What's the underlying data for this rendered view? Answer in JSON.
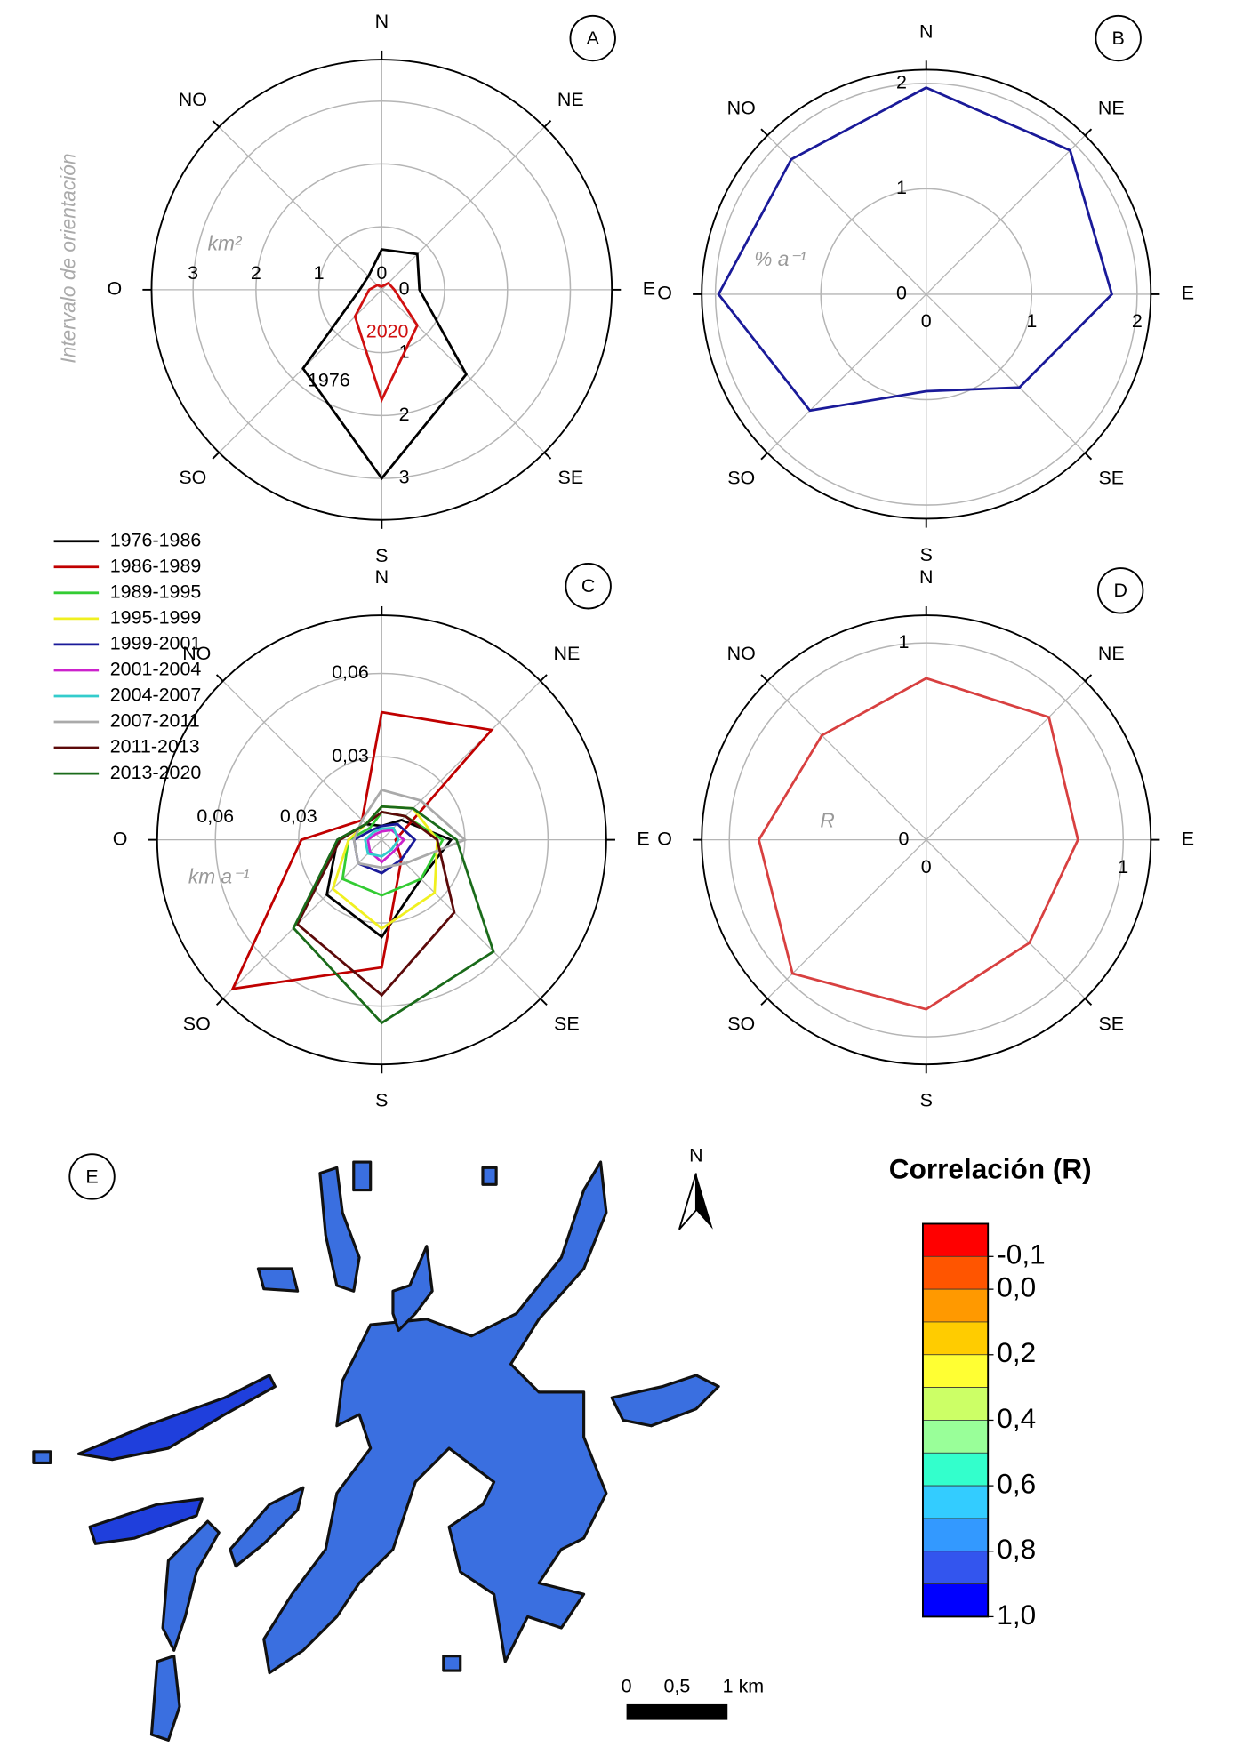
{
  "chart_data": [
    {
      "type": "radar",
      "panel": "A",
      "ylabel": "Intervalo de orientación",
      "unit": "km²",
      "categories": [
        "N",
        "NE",
        "E",
        "SE",
        "S",
        "SO",
        "O",
        "NO"
      ],
      "rlim": [
        0,
        3.66
      ],
      "rticks": [
        0,
        1,
        2,
        3
      ],
      "series": [
        {
          "name": "1976",
          "color": "#000000",
          "values": [
            0.64,
            0.8,
            0.6,
            1.9,
            3.0,
            1.77,
            0.35,
            0.3
          ]
        },
        {
          "name": "2020",
          "color": "#d01010",
          "values": [
            0.05,
            0.15,
            0.2,
            0.8,
            1.75,
            0.6,
            0.2,
            0.1
          ]
        }
      ]
    },
    {
      "type": "radar",
      "panel": "B",
      "unit": "% a⁻¹",
      "categories": [
        "N",
        "NE",
        "E",
        "SE",
        "S",
        "SO",
        "O",
        "NO"
      ],
      "rlim": [
        0,
        2.13
      ],
      "rticks": [
        0,
        1,
        2
      ],
      "series": [
        {
          "color": "#1a1a99",
          "values": [
            1.96,
            1.93,
            1.76,
            1.25,
            0.92,
            1.56,
            1.97,
            1.81
          ]
        }
      ]
    },
    {
      "type": "radar",
      "panel": "C",
      "unit": "km a⁻¹",
      "legend": true,
      "categories": [
        "N",
        "NE",
        "E",
        "SE",
        "S",
        "SO",
        "O",
        "NO"
      ],
      "rlim": [
        0,
        0.081
      ],
      "rticks": [
        {
          "value": 0.03,
          "label": "0,03"
        },
        {
          "value": 0.06,
          "label": "0,06"
        }
      ],
      "series": [
        {
          "name": "1976-1986",
          "color": "#000000",
          "values": [
            0.005,
            0.01,
            0.025,
            0.02,
            0.035,
            0.028,
            0.016,
            0.008
          ]
        },
        {
          "name": "1986-1989",
          "color": "#c00000",
          "values": [
            0.046,
            0.056,
            0.005,
            0.01,
            0.046,
            0.076,
            0.029,
            0.01
          ]
        },
        {
          "name": "1989-1995",
          "color": "#33cc33",
          "values": [
            0.01,
            0.012,
            0.022,
            0.02,
            0.02,
            0.02,
            0.012,
            0.006
          ]
        },
        {
          "name": "1995-1999",
          "color": "#f0f020",
          "values": [
            0.012,
            0.016,
            0.02,
            0.027,
            0.032,
            0.025,
            0.012,
            0.008
          ]
        },
        {
          "name": "1999-2001",
          "color": "#1a1a99",
          "values": [
            0.005,
            0.008,
            0.012,
            0.01,
            0.012,
            0.012,
            0.01,
            0.005
          ]
        },
        {
          "name": "2001-2004",
          "color": "#cc22cc",
          "values": [
            0.003,
            0.005,
            0.008,
            0.006,
            0.008,
            0.006,
            0.005,
            0.003
          ]
        },
        {
          "name": "2004-2007",
          "color": "#33cccc",
          "values": [
            0.004,
            0.006,
            0.006,
            0.005,
            0.006,
            0.007,
            0.006,
            0.004
          ]
        },
        {
          "name": "2007-2011",
          "color": "#aaaaaa",
          "values": [
            0.018,
            0.02,
            0.03,
            0.012,
            0.01,
            0.012,
            0.01,
            0.01
          ]
        },
        {
          "name": "2011-2013",
          "color": "#5c0a0a",
          "values": [
            0.01,
            0.012,
            0.02,
            0.037,
            0.056,
            0.043,
            0.015,
            0.008
          ]
        },
        {
          "name": "2013-2020",
          "color": "#1a6b1a",
          "values": [
            0.012,
            0.016,
            0.027,
            0.057,
            0.066,
            0.045,
            0.016,
            0.008
          ]
        }
      ]
    },
    {
      "type": "radar",
      "panel": "D",
      "unit": "R",
      "categories": [
        "N",
        "NE",
        "E",
        "SE",
        "S",
        "SO",
        "O",
        "NO"
      ],
      "rlim": [
        0,
        1.14
      ],
      "rticks": [
        0,
        1
      ],
      "series": [
        {
          "color": "#d84040",
          "values": [
            0.82,
            0.88,
            0.77,
            0.74,
            0.86,
            0.96,
            0.85,
            0.75
          ]
        }
      ]
    }
  ],
  "map": {
    "panel": "E",
    "north": "N",
    "scale_labels": [
      "0",
      "0,5",
      "1 km"
    ],
    "colorbar": {
      "title": "Correlación (R)",
      "lim": [
        -0.2,
        1.0
      ],
      "colors": [
        "#ff0000",
        "#ff5500",
        "#ff9900",
        "#ffcc00",
        "#ffff33",
        "#ccff66",
        "#99ff99",
        "#33ffcc",
        "#33ccff",
        "#3399ff",
        "#3355ee",
        "#0000ff"
      ],
      "ticks": [
        {
          "value": -0.1,
          "label": "-0,1"
        },
        {
          "value": 0.0,
          "label": "0,0"
        },
        {
          "value": 0.2,
          "label": "0,2"
        },
        {
          "value": 0.4,
          "label": "0,4"
        },
        {
          "value": 0.6,
          "label": "0,6"
        },
        {
          "value": 0.8,
          "label": "0,8"
        },
        {
          "value": 1.0,
          "label": "1,0"
        }
      ]
    }
  }
}
